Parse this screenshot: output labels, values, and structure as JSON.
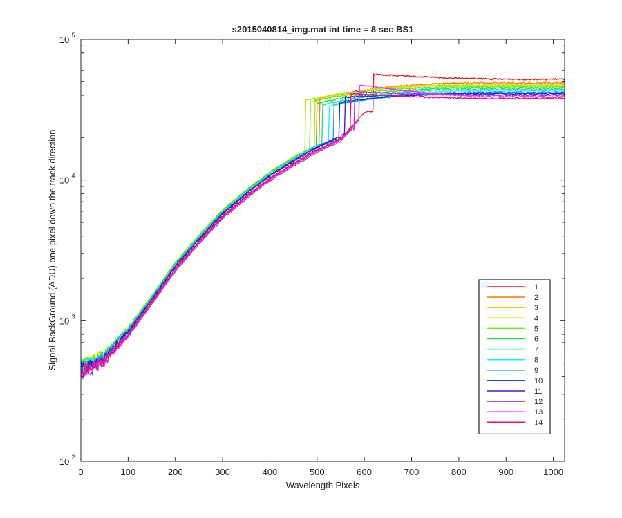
{
  "chart_data": {
    "type": "line",
    "title": "s2015040814_img.mat int time = 8 sec   BS1",
    "xlabel": "Wavelength Pixels",
    "ylabel": "Signal-BackGround (ADU) one pixel down the track direction",
    "xlim": [
      0,
      1024
    ],
    "ylim": [
      100,
      100000
    ],
    "yscale": "log",
    "xticks": [
      0,
      100,
      200,
      300,
      400,
      500,
      600,
      700,
      800,
      900,
      1000
    ],
    "yticks": [
      {
        "base": "10",
        "exp": "2",
        "value": 100
      },
      {
        "base": "10",
        "exp": "3",
        "value": 1000
      },
      {
        "base": "10",
        "exp": "4",
        "value": 10000
      },
      {
        "base": "10",
        "exp": "5",
        "value": 100000
      }
    ],
    "legend_position": "bottom-right",
    "shape_template": {
      "x": [
        0,
        50,
        100,
        150,
        200,
        250,
        300,
        350,
        400,
        450,
        500,
        550,
        600,
        650,
        700,
        750,
        800,
        850,
        900,
        950,
        1024
      ],
      "y": [
        470,
        560,
        860,
        1450,
        2500,
        3900,
        5900,
        8200,
        11000,
        14000,
        17500,
        21000,
        32000,
        38000,
        41000,
        42500,
        43500,
        44500,
        45000,
        45300,
        45500
      ]
    },
    "series": [
      {
        "name": "1",
        "color": "#e41a1c",
        "jump_at": 620,
        "level": 52000,
        "scale": 0.94
      },
      {
        "name": "2",
        "color": "#ff7f0e",
        "jump_at": 505,
        "level": 49000,
        "scale": 1.0
      },
      {
        "name": "3",
        "color": "#ffc800",
        "jump_at": 495,
        "level": 47500,
        "scale": 1.01
      },
      {
        "name": "4",
        "color": "#b4f000",
        "jump_at": 475,
        "level": 47000,
        "scale": 1.04
      },
      {
        "name": "5",
        "color": "#66ee22",
        "jump_at": 485,
        "level": 46000,
        "scale": 1.03
      },
      {
        "name": "6",
        "color": "#22dd44",
        "jump_at": 500,
        "level": 45000,
        "scale": 1.02
      },
      {
        "name": "7",
        "color": "#10e8a0",
        "jump_at": 512,
        "level": 44000,
        "scale": 1.01
      },
      {
        "name": "8",
        "color": "#22eeee",
        "jump_at": 525,
        "level": 43000,
        "scale": 1.0
      },
      {
        "name": "9",
        "color": "#2299ee",
        "jump_at": 535,
        "level": 42000,
        "scale": 0.99
      },
      {
        "name": "10",
        "color": "#0033ee",
        "jump_at": 548,
        "level": 41500,
        "scale": 0.98
      },
      {
        "name": "11",
        "color": "#3a1fd0",
        "jump_at": 560,
        "level": 41000,
        "scale": 0.97
      },
      {
        "name": "12",
        "color": "#a632f0",
        "jump_at": 580,
        "level": 40000,
        "scale": 0.9
      },
      {
        "name": "13",
        "color": "#ee33ee",
        "jump_at": 590,
        "level": 39000,
        "scale": 0.92
      },
      {
        "name": "14",
        "color": "#ee1177",
        "jump_at": 572,
        "level": 38000,
        "scale": 0.93
      }
    ]
  }
}
